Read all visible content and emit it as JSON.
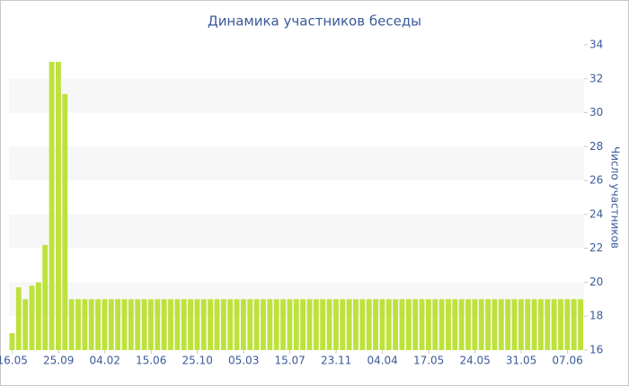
{
  "chart_data": {
    "type": "bar",
    "title": "Динамика участников беседы",
    "y_label": "Число участников",
    "categories": [
      "16.05",
      null,
      null,
      null,
      null,
      null,
      null,
      "25.09",
      null,
      null,
      null,
      null,
      null,
      null,
      "04.02",
      null,
      null,
      null,
      null,
      null,
      null,
      "15.06",
      null,
      null,
      null,
      null,
      null,
      null,
      "25.10",
      null,
      null,
      null,
      null,
      null,
      null,
      "05.03",
      null,
      null,
      null,
      null,
      null,
      null,
      "15.07",
      null,
      null,
      null,
      null,
      null,
      null,
      "23.11",
      null,
      null,
      null,
      null,
      null,
      null,
      "04.04",
      null,
      null,
      null,
      null,
      null,
      null,
      "17.05",
      null,
      null,
      null,
      null,
      null,
      null,
      "24.05",
      null,
      null,
      null,
      null,
      null,
      null,
      "31.05",
      null,
      null,
      null,
      null,
      null,
      null,
      "07.06",
      null,
      null
    ],
    "values": [
      17,
      19.7,
      19,
      19.8,
      20,
      22.2,
      33,
      33,
      31.1,
      19,
      19,
      19,
      19,
      19,
      19,
      19,
      19,
      19,
      19,
      19,
      19,
      19,
      19,
      19,
      19,
      19,
      19,
      19,
      19,
      19,
      19,
      19,
      19,
      19,
      19,
      19,
      19,
      19,
      19,
      19,
      19,
      19,
      19,
      19,
      19,
      19,
      19,
      19,
      19,
      19,
      19,
      19,
      19,
      19,
      19,
      19,
      19,
      19,
      19,
      19,
      19,
      19,
      19,
      19,
      19,
      19,
      19,
      19,
      19,
      19,
      19,
      19,
      19,
      19,
      19,
      19,
      19,
      19,
      19,
      19,
      19,
      19,
      19,
      19,
      19,
      19,
      19
    ],
    "color": "#bde23c",
    "ylim": [
      16,
      34
    ],
    "yticks": [
      16,
      18,
      20,
      22,
      24,
      26,
      28,
      30,
      32,
      34
    ],
    "y_axis_side": "right",
    "grid": "bands"
  }
}
